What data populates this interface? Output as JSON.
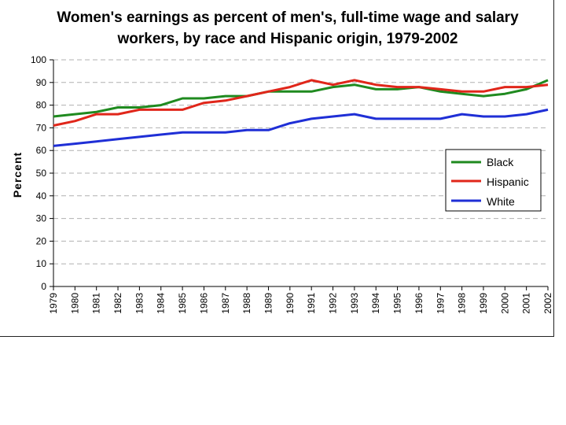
{
  "chart_data": {
    "type": "line",
    "title_lines": [
      "Women's earnings as percent of men's, full-time wage and salary",
      "workers, by race and Hispanic origin, 1979-2002"
    ],
    "ylabel": "Percent",
    "xlabel": "",
    "ylim": [
      0,
      100
    ],
    "yticks": [
      "0",
      "10",
      "20",
      "30",
      "40",
      "50",
      "60",
      "70",
      "80",
      "90",
      "100"
    ],
    "categories": [
      "1979",
      "1980",
      "1981",
      "1982",
      "1983",
      "1984",
      "1985",
      "1986",
      "1987",
      "1988",
      "1989",
      "1990",
      "1991",
      "1992",
      "1993",
      "1994",
      "1995",
      "1996",
      "1997",
      "1998",
      "1999",
      "2000",
      "2001",
      "2002"
    ],
    "grid": "horizontal-dashed",
    "legend_position": "right",
    "series": [
      {
        "name": "Black",
        "color": "#1f8a1f",
        "values": [
          75,
          76,
          77,
          79,
          79,
          80,
          83,
          83,
          84,
          84,
          86,
          86,
          86,
          88,
          89,
          87,
          87,
          88,
          86,
          85,
          84,
          85,
          87,
          91
        ]
      },
      {
        "name": "Hispanic",
        "color": "#e0261a",
        "values": [
          71,
          73,
          76,
          76,
          78,
          78,
          78,
          81,
          82,
          84,
          86,
          88,
          91,
          89,
          91,
          89,
          88,
          88,
          87,
          86,
          86,
          88,
          88,
          89
        ]
      },
      {
        "name": "White",
        "color": "#1f2fd6",
        "values": [
          62,
          63,
          64,
          65,
          66,
          67,
          68,
          68,
          68,
          69,
          69,
          72,
          74,
          75,
          76,
          74,
          74,
          74,
          74,
          76,
          75,
          75,
          76,
          78
        ]
      }
    ]
  }
}
